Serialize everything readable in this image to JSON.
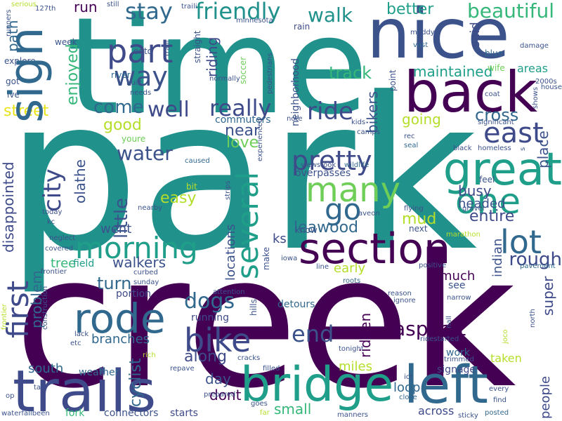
{
  "title": "word cloud",
  "palette": {
    "deep_purple": "#440154",
    "indigo": "#3b528b",
    "slate_blue": "#3e4a89",
    "teal_blue": "#31688e",
    "teal": "#21918c",
    "sea_green": "#1f9e89",
    "green": "#35b779",
    "light_green": "#6ece58",
    "lime": "#b5de2b",
    "yellow": "#e8e419"
  },
  "words": [
    {
      "text": "park"
    },
    {
      "text": "creek"
    },
    {
      "text": "time"
    },
    {
      "text": "nice"
    },
    {
      "text": "back"
    },
    {
      "text": "trails"
    },
    {
      "text": "bridge"
    },
    {
      "text": "left"
    },
    {
      "text": "section"
    },
    {
      "text": "sign"
    },
    {
      "text": "great"
    },
    {
      "text": "many"
    },
    {
      "text": "part"
    },
    {
      "text": "rode"
    },
    {
      "text": "bike"
    },
    {
      "text": "morning"
    },
    {
      "text": "several"
    },
    {
      "text": "one"
    },
    {
      "text": "go"
    },
    {
      "text": "pretty"
    },
    {
      "text": "first"
    },
    {
      "text": "lot"
    },
    {
      "text": "east"
    },
    {
      "text": "way"
    },
    {
      "text": "friendly"
    },
    {
      "text": "stay"
    },
    {
      "text": "beautiful"
    },
    {
      "text": "walk"
    },
    {
      "text": "really"
    },
    {
      "text": "well"
    },
    {
      "text": "come"
    },
    {
      "text": "ride"
    },
    {
      "text": "end"
    },
    {
      "text": "dogs"
    },
    {
      "text": "asphalt"
    },
    {
      "text": "water"
    },
    {
      "text": "city"
    },
    {
      "text": "rough"
    },
    {
      "text": "better"
    },
    {
      "text": "path"
    },
    {
      "text": "enjoyed"
    },
    {
      "text": "street"
    },
    {
      "text": "riding"
    },
    {
      "text": "track"
    },
    {
      "text": "maintained"
    },
    {
      "text": "cross"
    },
    {
      "text": "good"
    },
    {
      "text": "love"
    },
    {
      "text": "near"
    },
    {
      "text": "little"
    },
    {
      "text": "olathe"
    },
    {
      "text": "disappointed"
    },
    {
      "text": "easy"
    },
    {
      "text": "went"
    },
    {
      "text": "leawood"
    },
    {
      "text": "mud"
    },
    {
      "text": "entire"
    },
    {
      "text": "busy"
    },
    {
      "text": "headed"
    },
    {
      "text": "place"
    },
    {
      "text": "walkers"
    },
    {
      "text": "ks"
    },
    {
      "text": "locations"
    },
    {
      "text": "turn"
    },
    {
      "text": "problem"
    },
    {
      "text": "tree"
    },
    {
      "text": "branches"
    },
    {
      "text": "along"
    },
    {
      "text": "cyclist"
    },
    {
      "text": "day"
    },
    {
      "text": "dont"
    },
    {
      "text": "south"
    },
    {
      "text": "weather"
    },
    {
      "text": "miles"
    },
    {
      "text": "ridden"
    },
    {
      "text": "much"
    },
    {
      "text": "early"
    },
    {
      "text": "super"
    },
    {
      "text": "indian"
    },
    {
      "text": "see"
    },
    {
      "text": "taken"
    },
    {
      "text": "people"
    },
    {
      "text": "work"
    },
    {
      "text": "signage"
    },
    {
      "text": "loop"
    },
    {
      "text": "across"
    },
    {
      "text": "small"
    },
    {
      "text": "connectors"
    },
    {
      "text": "starts"
    },
    {
      "text": "fork"
    },
    {
      "text": "run"
    },
    {
      "text": "commuters"
    },
    {
      "text": "bikers"
    },
    {
      "text": "going"
    },
    {
      "text": "neighborhood"
    },
    {
      "text": "detours"
    },
    {
      "text": "running"
    },
    {
      "text": "portion"
    },
    {
      "text": "field"
    },
    {
      "text": "overpasses"
    },
    {
      "text": "viewstook"
    },
    {
      "text": "wildlife"
    },
    {
      "text": "youre"
    },
    {
      "text": "explore"
    },
    {
      "text": "got"
    },
    {
      "text": "ive"
    },
    {
      "text": "river"
    },
    {
      "text": "onto"
    },
    {
      "text": "week"
    },
    {
      "text": "said"
    },
    {
      "text": "blue"
    },
    {
      "text": "wife"
    },
    {
      "text": "areas"
    },
    {
      "text": "feel"
    },
    {
      "text": "next"
    },
    {
      "text": "know"
    },
    {
      "text": "make"
    },
    {
      "text": "soccer"
    },
    {
      "text": "straight"
    },
    {
      "text": "rain"
    },
    {
      "text": "bit"
    },
    {
      "text": "kids"
    },
    {
      "text": "camps"
    },
    {
      "text": "point"
    },
    {
      "text": "vast"
    },
    {
      "text": "muddy"
    },
    {
      "text": "damage"
    },
    {
      "text": "coat"
    },
    {
      "text": "house"
    },
    {
      "text": "2000s"
    },
    {
      "text": "shows"
    },
    {
      "text": "significant"
    },
    {
      "text": "rec"
    },
    {
      "text": "seal"
    },
    {
      "text": "black"
    },
    {
      "text": "homeless"
    },
    {
      "text": "gravel"
    },
    {
      "text": "flying"
    },
    {
      "text": "aveon"
    },
    {
      "text": "marathon"
    },
    {
      "text": "pavement"
    },
    {
      "text": "positive"
    },
    {
      "text": "line"
    },
    {
      "text": "iowa"
    },
    {
      "text": "roots"
    },
    {
      "text": "attention"
    },
    {
      "text": "hills"
    },
    {
      "text": "reason"
    },
    {
      "text": "ignore"
    },
    {
      "text": "narrow"
    },
    {
      "text": "nall"
    },
    {
      "text": "north"
    },
    {
      "text": "joco"
    },
    {
      "text": "ridestarted"
    },
    {
      "text": "tonight"
    },
    {
      "text": "trimmed"
    },
    {
      "text": "ict"
    },
    {
      "text": "close"
    },
    {
      "text": "every"
    },
    {
      "text": "find"
    },
    {
      "text": "posted"
    },
    {
      "text": "sticky"
    },
    {
      "text": "manners"
    },
    {
      "text": "goes"
    },
    {
      "text": "far"
    },
    {
      "text": "filled"
    },
    {
      "text": "cracks"
    },
    {
      "text": "prepared"
    },
    {
      "text": "repave"
    },
    {
      "text": "rich"
    },
    {
      "text": "tar"
    },
    {
      "text": "op"
    },
    {
      "text": "waterfallbeen"
    },
    {
      "text": "etc"
    },
    {
      "text": "lack"
    },
    {
      "text": "construction"
    },
    {
      "text": "frontier"
    },
    {
      "text": "covered"
    },
    {
      "text": "neglect"
    },
    {
      "text": "today"
    },
    {
      "text": "kc"
    },
    {
      "text": "curbed"
    },
    {
      "text": "sunday"
    },
    {
      "text": "nearby"
    },
    {
      "text": "caused"
    },
    {
      "text": "strips"
    },
    {
      "text": "experienced"
    },
    {
      "text": "enjoyable"
    },
    {
      "text": "note"
    },
    {
      "text": "pedestrians"
    },
    {
      "text": "minnesota"
    },
    {
      "text": "traili"
    },
    {
      "text": "still"
    },
    {
      "text": "serious"
    },
    {
      "text": "127th"
    },
    {
      "text": "runners"
    },
    {
      "text": "built"
    },
    {
      "text": "needs"
    },
    {
      "text": "normally"
    },
    {
      "text": "s"
    }
  ]
}
